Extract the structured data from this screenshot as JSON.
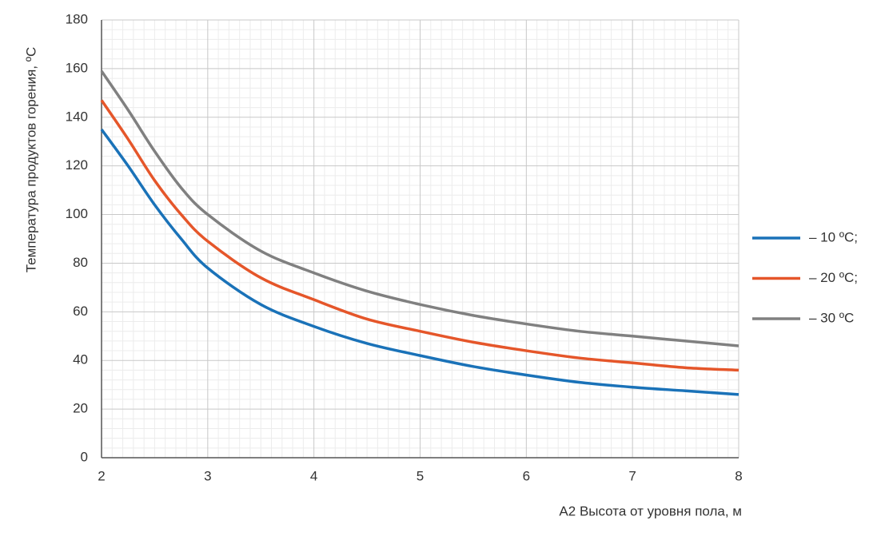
{
  "chart_data": {
    "type": "line",
    "y_label": "Температура продуктов горения, ºС",
    "x_label": "A2 Высота от уровня пола, м",
    "x": [
      2,
      2.25,
      2.5,
      2.75,
      3,
      3.5,
      4,
      4.5,
      5,
      5.5,
      6,
      6.5,
      7,
      7.5,
      8
    ],
    "series": [
      {
        "name": "– 10 ºС;",
        "color": "#1a72b8",
        "values": [
          135,
          120,
          104,
          90,
          78,
          63,
          54,
          47,
          42,
          37.5,
          34,
          31,
          29,
          27.5,
          26
        ]
      },
      {
        "name": "– 20 ºС;",
        "color": "#e5562a",
        "values": [
          147,
          131,
          114,
          100,
          89,
          74,
          65,
          57,
          52,
          47.5,
          44,
          41,
          39,
          37,
          36
        ]
      },
      {
        "name": "– 30 ºС",
        "color": "#808080",
        "values": [
          159,
          143,
          126,
          111,
          100,
          85,
          76,
          68.5,
          63,
          58.5,
          55,
          52,
          50,
          48,
          46
        ]
      }
    ],
    "xlim": [
      2,
      8
    ],
    "xticks": [
      2,
      3,
      4,
      5,
      6,
      7,
      8
    ],
    "ylim": [
      0,
      180
    ],
    "yticks": [
      0,
      20,
      40,
      60,
      80,
      100,
      120,
      140,
      160,
      180
    ],
    "grid": true,
    "legend": "right"
  }
}
